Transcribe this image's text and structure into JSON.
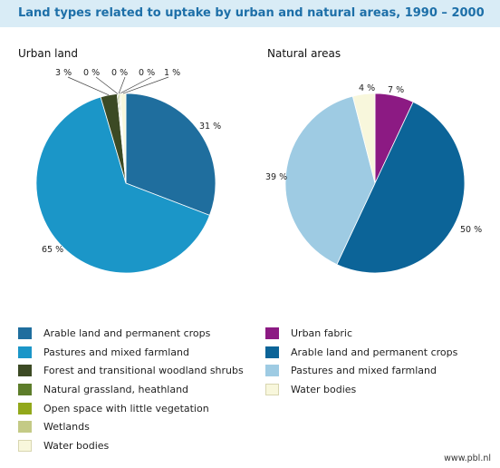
{
  "title": "Land types related to uptake by urban and natural areas, 1990 – 2000",
  "source": "www.pbl.nl",
  "chart_data": [
    {
      "type": "pie",
      "title": "Urban land",
      "slices": [
        {
          "label": "Arable land and permanent crops",
          "value": 31,
          "value_label": "31 %",
          "color": "#1f6e9e"
        },
        {
          "label": "Pastures and mixed farmland",
          "value": 65,
          "value_label": "65 %",
          "color": "#1b96c8"
        },
        {
          "label": "Forest and transitional woodland shrubs",
          "value": 3,
          "value_label": "3 %",
          "color": "#3c4a24"
        },
        {
          "label": "Natural grassland, heathland",
          "value": 0,
          "value_label": "0 %",
          "color": "#5d7d2a"
        },
        {
          "label": "Open space with little vegetation",
          "value": 0,
          "value_label": "0 %",
          "color": "#92a81a"
        },
        {
          "label": "Wetlands",
          "value": 0,
          "value_label": "0 %",
          "color": "#c4ca86"
        },
        {
          "label": "Water bodies",
          "value": 1,
          "value_label": "1 %",
          "color": "#f8f7dc"
        }
      ]
    },
    {
      "type": "pie",
      "title": "Natural areas",
      "slices": [
        {
          "label": "Urban fabric",
          "value": 7,
          "value_label": "7 %",
          "color": "#8c1a83"
        },
        {
          "label": "Arable land and permanent crops",
          "value": 50,
          "value_label": "50 %",
          "color": "#0c6498"
        },
        {
          "label": "Pastures and mixed farmland",
          "value": 39,
          "value_label": "39 %",
          "color": "#9ecbe3"
        },
        {
          "label": "Water bodies",
          "value": 4,
          "value_label": "4 %",
          "color": "#f8f7dc"
        }
      ]
    }
  ]
}
